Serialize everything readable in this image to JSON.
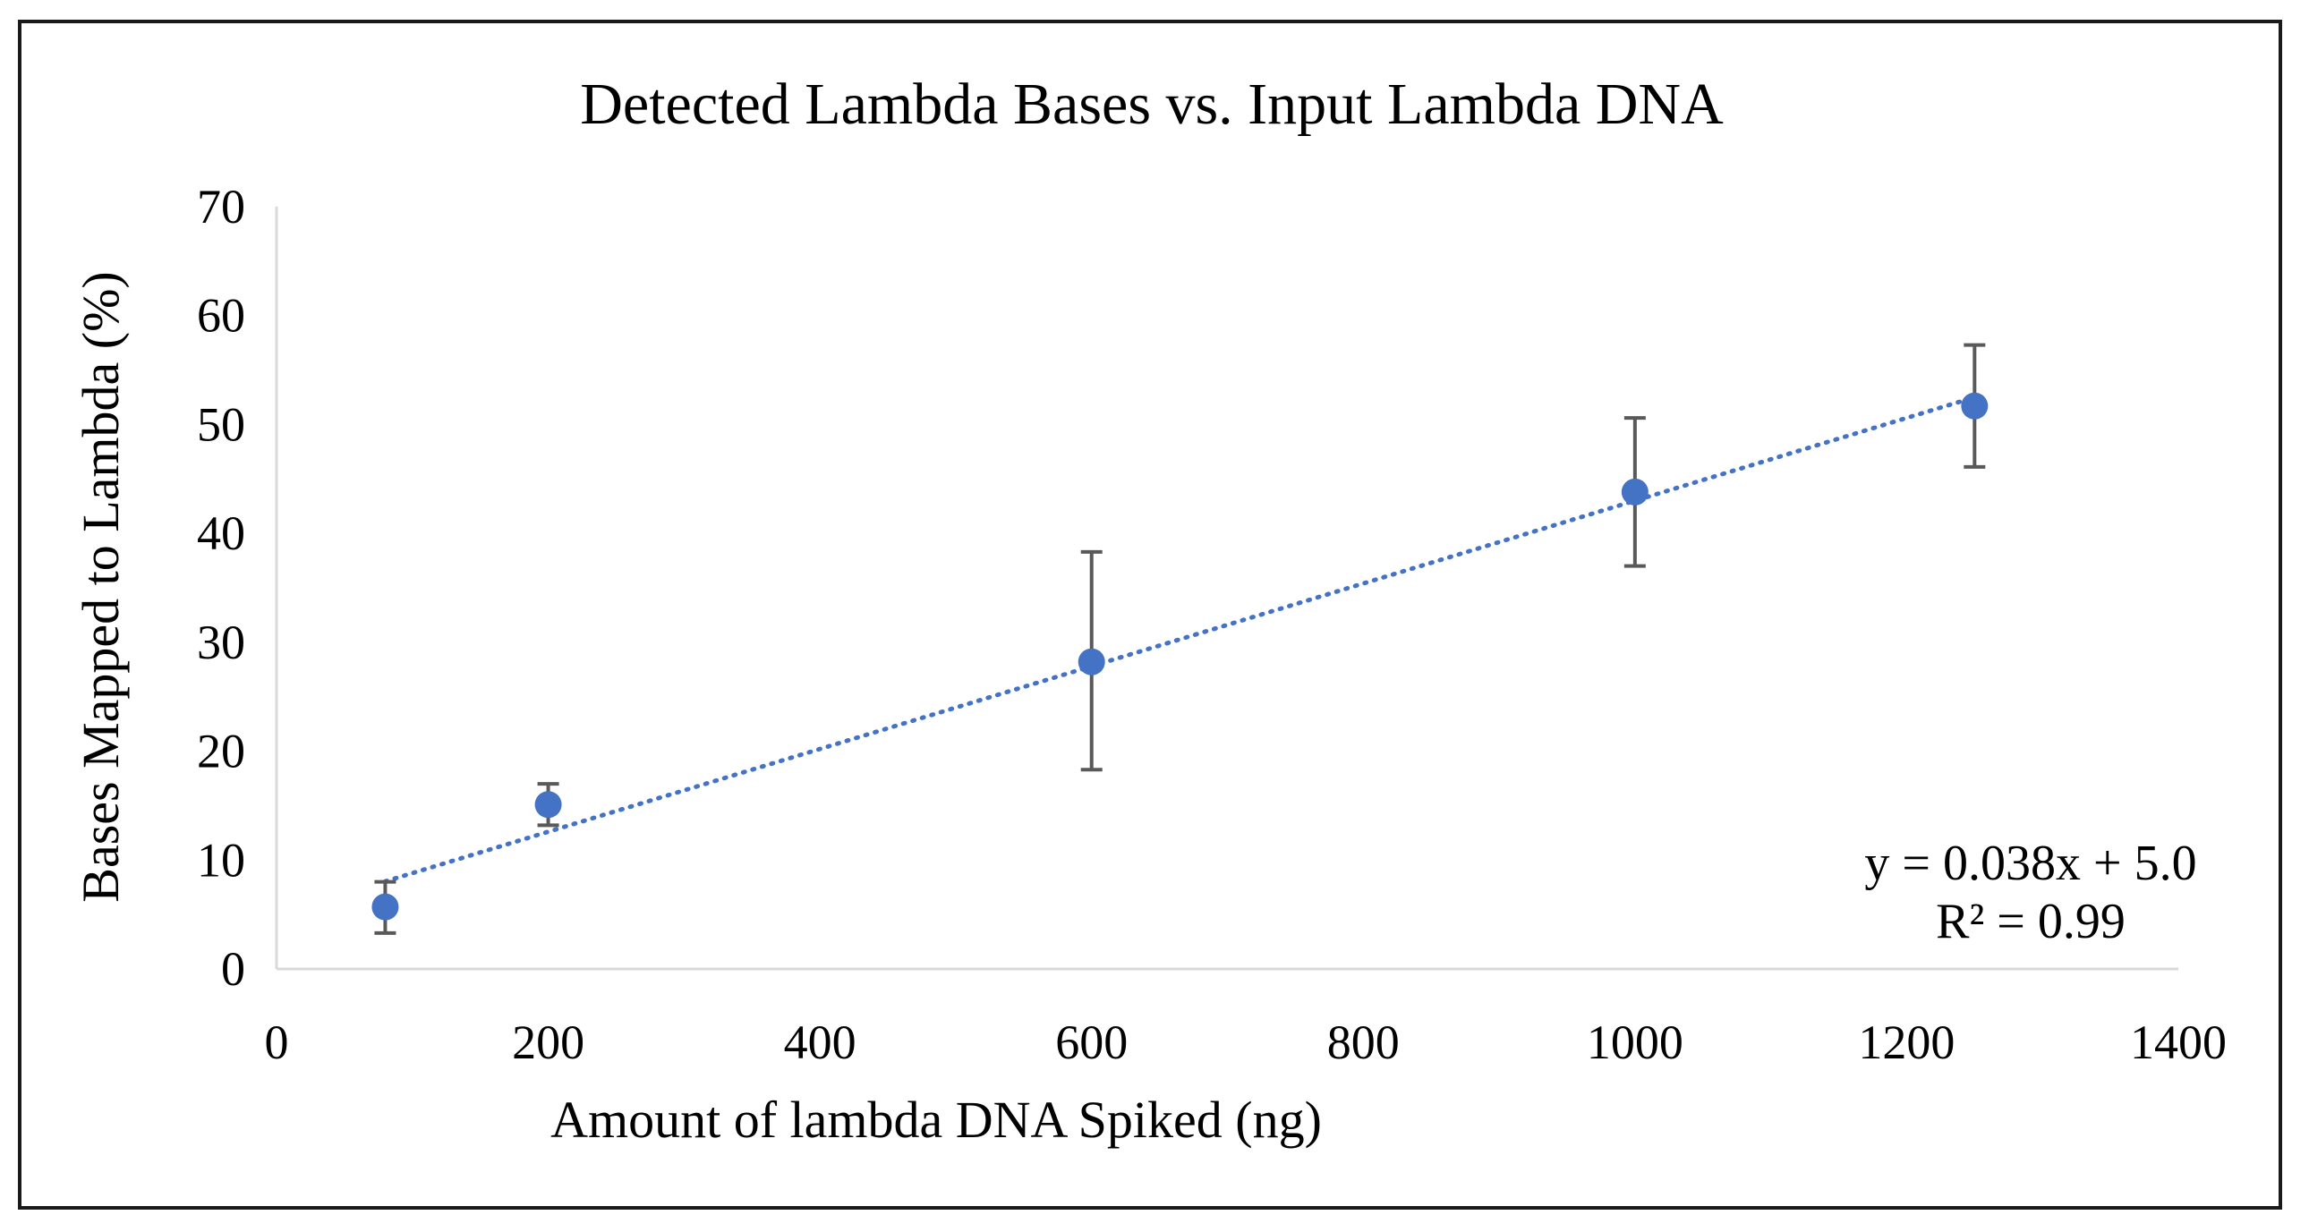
{
  "chart_data": {
    "type": "scatter",
    "title": "Detected Lambda Bases vs. Input Lambda DNA",
    "xlabel": "Amount of lambda DNA Spiked (ng)",
    "ylabel": "Bases Mapped to Lambda (%)",
    "xlim": [
      0,
      1400
    ],
    "ylim": [
      0,
      70
    ],
    "xticks": [
      0,
      200,
      400,
      600,
      800,
      1000,
      1200,
      1400
    ],
    "yticks": [
      0,
      10,
      20,
      30,
      40,
      50,
      60,
      70
    ],
    "grid": false,
    "series": [
      {
        "x": [
          80,
          200,
          600,
          1000,
          1250
        ],
        "y": [
          5.7,
          15.1,
          28.2,
          43.8,
          51.7
        ],
        "error_low": [
          3.3,
          13.2,
          18.3,
          37.0,
          46.1
        ],
        "error_high": [
          8.0,
          17.0,
          38.3,
          50.6,
          57.3
        ],
        "color": "#4472C4"
      }
    ],
    "trendline": {
      "type": "linear",
      "slope": 0.038,
      "intercept": 5.0,
      "x_range": [
        80,
        1250
      ],
      "style": "dotted",
      "color": "#4472C4"
    },
    "annotation": {
      "equation": "y = 0.038x + 5.0",
      "r_squared": "R² = 0.99",
      "placement": "bottom-right"
    },
    "colors": {
      "marker": "#4472C4",
      "error_bar": "#595959",
      "axis": "#D9D9D9",
      "text": "#000000"
    }
  }
}
